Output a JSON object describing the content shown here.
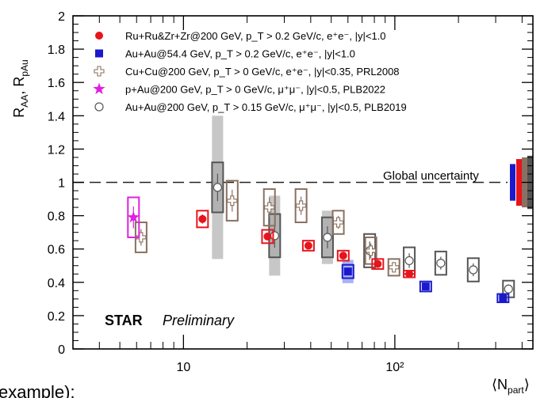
{
  "chart_data": {
    "type": "scatter",
    "ylabel": "R_AA, R_pAu",
    "xlabel": "⟨N_part⟩",
    "x_scale": "log",
    "xlim": [
      3,
      450
    ],
    "ylim": [
      0,
      2
    ],
    "x_ticks": [
      {
        "value": 10,
        "label": "10"
      },
      {
        "value": 100,
        "label": "10²"
      }
    ],
    "y_ticks": [
      "0",
      "0.2",
      "0.4",
      "0.6",
      "0.8",
      "1",
      "1.2",
      "1.4",
      "1.6",
      "1.8",
      "2"
    ],
    "reference_line": {
      "y": 1,
      "label": "Global uncertainty"
    },
    "annotation": {
      "experiment": "STAR",
      "status": "Preliminary"
    },
    "global_uncertainty_boxes": [
      {
        "color": "#1a1acc",
        "low": 0.89,
        "high": 1.11
      },
      {
        "color": "#e8141c",
        "low": 0.86,
        "high": 1.14
      },
      {
        "color": "#8a7060",
        "low": 0.85,
        "high": 1.15
      },
      {
        "color": "#555555",
        "low": 0.84,
        "high": 1.16
      }
    ],
    "series": [
      {
        "name": "Ru+Ru&Zr+Zr@200 GeV, p_T > 0.2 GeV/c, e⁺e⁻, |y|<1.0",
        "color": "#e8141c",
        "marker": "filled-circle",
        "points": [
          {
            "x": 12.3,
            "y": 0.78,
            "sys": 0.05
          },
          {
            "x": 25,
            "y": 0.675,
            "sys": 0.04
          },
          {
            "x": 39,
            "y": 0.62,
            "sys": 0.03
          },
          {
            "x": 57,
            "y": 0.56,
            "sys": 0.03
          },
          {
            "x": 83,
            "y": 0.51,
            "sys": 0.03
          },
          {
            "x": 117,
            "y": 0.45,
            "sys": 0.02
          }
        ]
      },
      {
        "name": "Au+Au@54.4 GeV, p_T > 0.2 GeV/c, e⁺e⁻, |y|<1.0",
        "color": "#1a1acc",
        "marker": "filled-square",
        "points": [
          {
            "x": 60,
            "y": 0.465,
            "sys": 0.04,
            "extra": 0.07
          },
          {
            "x": 140,
            "y": 0.375,
            "sys": 0.03
          },
          {
            "x": 325,
            "y": 0.305,
            "sys": 0.025
          }
        ]
      },
      {
        "name": "Cu+Cu@200 GeV, p_T > 0 GeV/c, e⁺e⁻, |y|<0.35, PRL2008",
        "color": "#8a7060",
        "marker": "open-cross",
        "points": [
          {
            "x": 6.3,
            "y": 0.67,
            "sys": 0.09
          },
          {
            "x": 17,
            "y": 0.89,
            "sys": 0.12
          },
          {
            "x": 25.5,
            "y": 0.85,
            "sys": 0.11
          },
          {
            "x": 36,
            "y": 0.86,
            "sys": 0.1
          },
          {
            "x": 54,
            "y": 0.76,
            "sys": 0.07
          },
          {
            "x": 77,
            "y": 0.59,
            "sys": 0.08
          },
          {
            "x": 99,
            "y": 0.49,
            "sys": 0.05
          }
        ]
      },
      {
        "name": "p+Au@200 GeV, p_T > 0 GeV/c, μ⁺μ⁻, |y|<0.5, PLB2022",
        "color": "#e020e0",
        "marker": "star",
        "points": [
          {
            "x": 5.8,
            "y": 0.79,
            "sys": 0.12
          }
        ]
      },
      {
        "name": "Au+Au@200 GeV, p_T > 0.15 GeV/c, μ⁺μ⁻, |y|<0.5, PLB2019",
        "color": "#555555",
        "marker": "open-circle",
        "points": [
          {
            "x": 14.5,
            "y": 0.97,
            "sys": 0.15,
            "extra": 0.43
          },
          {
            "x": 27,
            "y": 0.68,
            "sys": 0.13,
            "extra": 0.24
          },
          {
            "x": 48,
            "y": 0.67,
            "sys": 0.12,
            "extra": 0.16
          },
          {
            "x": 76,
            "y": 0.59,
            "sys": 0.1
          },
          {
            "x": 117,
            "y": 0.53,
            "sys": 0.08
          },
          {
            "x": 165,
            "y": 0.515,
            "sys": 0.07
          },
          {
            "x": 235,
            "y": 0.475,
            "sys": 0.07
          },
          {
            "x": 345,
            "y": 0.36,
            "sys": 0.05
          }
        ]
      }
    ]
  },
  "footer_text": "example):"
}
